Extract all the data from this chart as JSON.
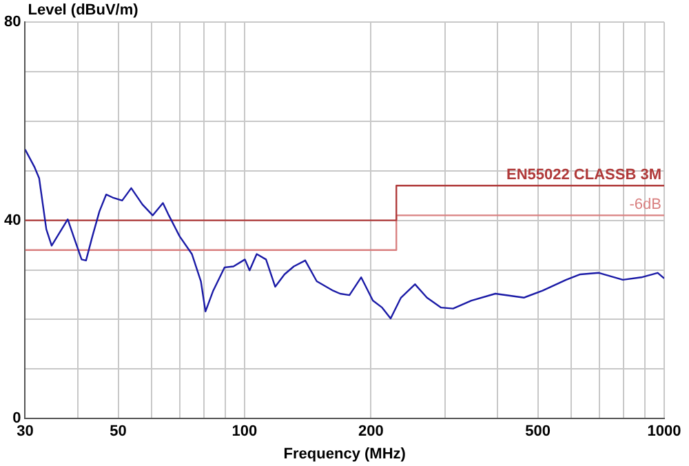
{
  "chart_data": {
    "type": "line",
    "xlabel": "Frequency (MHz)",
    "ylabel": "Level (dBuV/m)",
    "log": "x",
    "grid": true,
    "legend": false,
    "marker": "none",
    "line_style": "solid",
    "xlim": [
      30,
      1000
    ],
    "xticks": [
      30,
      {
        "value": 40,
        "label": null
      },
      50,
      {
        "value": 60,
        "label": null
      },
      {
        "value": 70,
        "label": null
      },
      {
        "value": 80,
        "label": null
      },
      {
        "value": 90,
        "label": null
      },
      100,
      200,
      {
        "value": 300,
        "label": null
      },
      {
        "value": 400,
        "label": null
      },
      500,
      {
        "value": 600,
        "label": null
      },
      {
        "value": 700,
        "label": null
      },
      {
        "value": 800,
        "label": null
      },
      {
        "value": 900,
        "label": null
      },
      1000
    ],
    "ylim": [
      0,
      80
    ],
    "yticks": [
      0,
      {
        "value": 10,
        "label": null
      },
      {
        "value": 20,
        "label": null
      },
      {
        "value": 30,
        "label": null
      },
      40,
      {
        "value": 50,
        "label": null
      },
      {
        "value": 60,
        "label": null
      },
      {
        "value": 70,
        "label": null
      },
      80
    ],
    "series": [
      {
        "color": "#1a1aa6",
        "x": [
          30,
          31.6,
          32.4,
          33.7,
          34.7,
          37.9,
          39.3,
          40.9,
          41.9,
          43.4,
          45.1,
          46.8,
          48.5,
          51.1,
          53.7,
          57.1,
          60.4,
          63.9,
          66,
          70,
          74.9,
          78.7,
          80.7,
          84.2,
          89.6,
          94.1,
          100.2,
          102.8,
          106.9,
          112.5,
          118.3,
          124.5,
          131,
          139.5,
          148.6,
          162.6,
          168.9,
          177.8,
          189.6,
          202.2,
          212.7,
          222.9,
          235.9,
          254.8,
          272,
          294,
          314,
          347,
          396,
          463,
          513,
          584,
          631,
          699,
          797,
          882,
          965,
          1000
        ],
        "values": [
          54.3,
          50.7,
          48.5,
          38.2,
          34.9,
          40.2,
          36.3,
          32.1,
          31.9,
          36.8,
          41.8,
          45.2,
          44.6,
          44,
          46.5,
          43.2,
          41,
          43.5,
          41,
          36.8,
          33.2,
          27.7,
          21.6,
          25.8,
          30.5,
          30.7,
          32.1,
          29.9,
          33.2,
          32.1,
          26.6,
          29.1,
          30.7,
          31.9,
          27.7,
          25.8,
          25.2,
          24.9,
          28.5,
          23.8,
          22.4,
          20.2,
          24.4,
          27.1,
          24.4,
          22.4,
          22.2,
          23.8,
          25.2,
          24.4,
          25.8,
          28,
          29.1,
          29.4,
          28,
          28.5,
          29.4,
          28.3
        ]
      },
      {
        "name": "EN55022 CLASSB 3M",
        "color": "#b03a3a",
        "x": [
          30,
          230,
          230,
          1000
        ],
        "values": [
          40,
          40,
          47,
          47
        ]
      },
      {
        "name": "-6dB",
        "color": "#d98080",
        "x": [
          30,
          230,
          230,
          1000
        ],
        "values": [
          34,
          34,
          41,
          41
        ]
      }
    ]
  }
}
